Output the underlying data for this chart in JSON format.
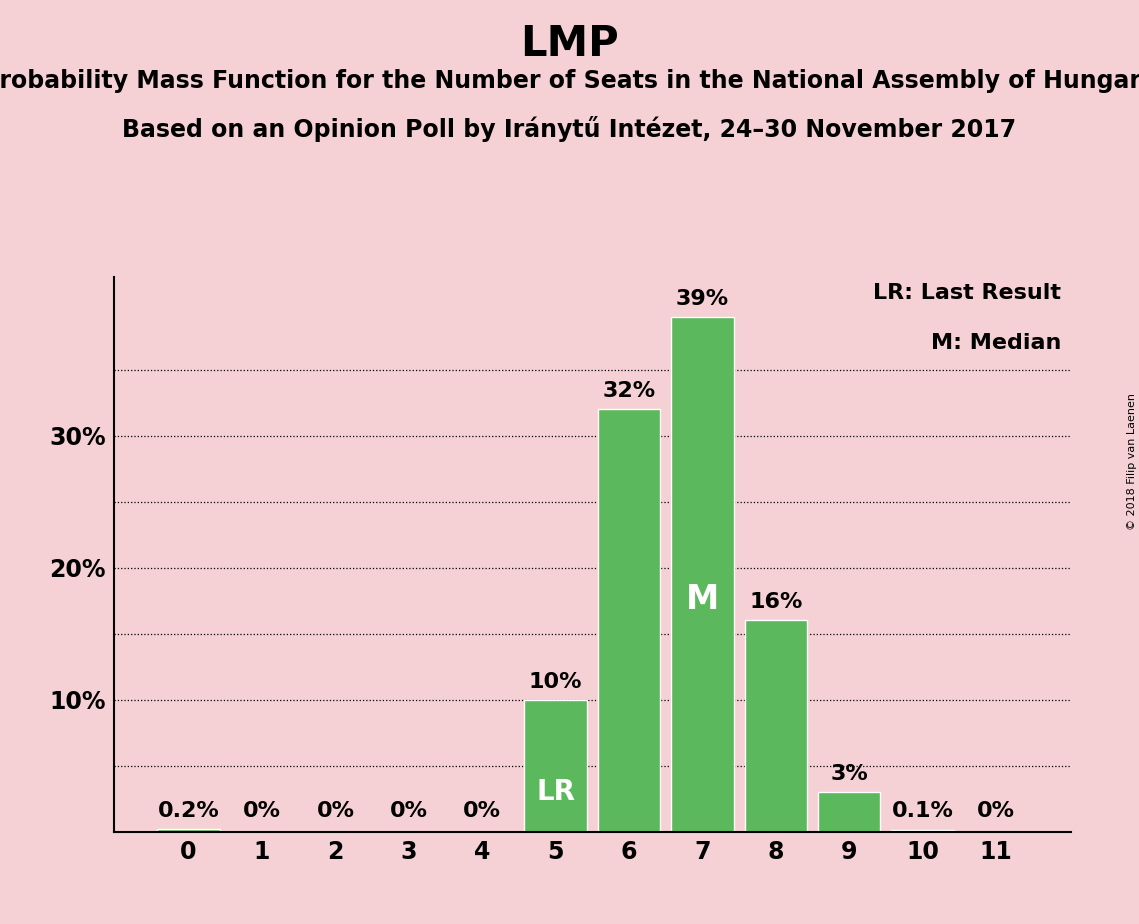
{
  "title": "LMP",
  "subtitle1": "Probability Mass Function for the Number of Seats in the National Assembly of Hungary",
  "subtitle2": "Based on an Opinion Poll by Iránytű Intézet, 24–30 November 2017",
  "watermark": "© 2018 Filip van Laenen",
  "categories": [
    0,
    1,
    2,
    3,
    4,
    5,
    6,
    7,
    8,
    9,
    10,
    11
  ],
  "values": [
    0.2,
    0.0,
    0.0,
    0.0,
    0.0,
    10.0,
    32.0,
    39.0,
    16.0,
    3.0,
    0.1,
    0.0
  ],
  "labels": [
    "0.2%",
    "0%",
    "0%",
    "0%",
    "0%",
    "10%",
    "32%",
    "39%",
    "16%",
    "3%",
    "0.1%",
    "0%"
  ],
  "bar_color": "#5cb85c",
  "background_color": "#f5d0d5",
  "lr_index": 5,
  "median_index": 7,
  "lr_label": "LR",
  "median_label": "M",
  "legend_lr": "LR: Last Result",
  "legend_m": "M: Median",
  "dotted_yticks": [
    5,
    15,
    25,
    35
  ],
  "solid_yticks": [
    10,
    20,
    30
  ],
  "ylim": [
    0,
    42
  ],
  "ytick_show": [
    10,
    20,
    30
  ],
  "title_fontsize": 30,
  "subtitle_fontsize": 17,
  "label_fontsize": 16,
  "tick_fontsize": 17,
  "legend_fontsize": 16,
  "watermark_fontsize": 8,
  "bar_width": 0.85
}
